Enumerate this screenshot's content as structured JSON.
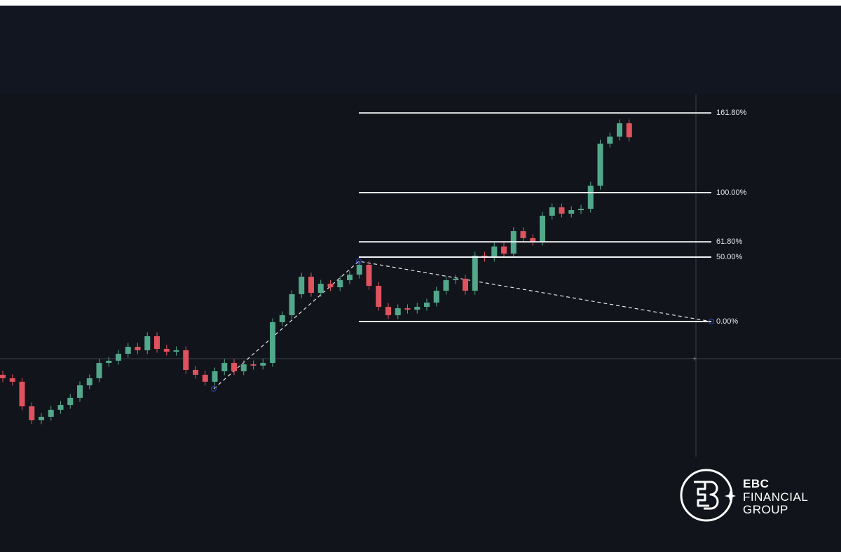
{
  "chart_data": {
    "type": "candlestick",
    "open": [
      -41.3,
      -44.0,
      -46.7,
      -65.8,
      -76.6,
      -73.9,
      -68.5,
      -64.7,
      -59.2,
      -49.5,
      -44.0,
      -32.1,
      -30.4,
      -25.0,
      -19.6,
      -22.3,
      -11.4,
      -21.2,
      -23.4,
      -22.3,
      -37.5,
      -41.3,
      -46.7,
      -38.6,
      -32.1,
      -38.6,
      -33.2,
      -34.2,
      -32.1,
      -0.5,
      4.9,
      21.2,
      34.8,
      22.3,
      29.3,
      26.6,
      32.1,
      36.4,
      44.0,
      27.7,
      11.4,
      4.9,
      10.3,
      9.2,
      11.4,
      14.7,
      23.9,
      32.1,
      33.2,
      23.9,
      51.1,
      49.5,
      58.2,
      52.7,
      70.1,
      64.7,
      62.0,
      82.1,
      88.6,
      83.7,
      86.4,
      87.5,
      105.4,
      138.0,
      143.5,
      153.8
    ],
    "high": [
      -38.3,
      -41.0,
      -43.7,
      -62.8,
      -70.9,
      -65.5,
      -61.7,
      -56.2,
      -46.5,
      -41.0,
      -29.1,
      -27.4,
      -22.0,
      -16.6,
      -16.6,
      -8.4,
      -8.4,
      -18.2,
      -19.3,
      -19.3,
      -34.5,
      -38.3,
      -35.6,
      -29.1,
      -29.1,
      -30.2,
      -30.2,
      -29.1,
      2.5,
      7.9,
      24.2,
      37.8,
      37.8,
      32.3,
      32.3,
      35.1,
      39.4,
      47.0,
      47.0,
      30.7,
      14.4,
      13.3,
      13.3,
      14.4,
      17.7,
      26.9,
      35.1,
      36.2,
      36.2,
      54.1,
      54.1,
      61.2,
      61.2,
      73.1,
      73.1,
      67.7,
      85.1,
      91.6,
      91.6,
      89.4,
      90.5,
      108.4,
      141.0,
      146.5,
      156.8,
      156.8
    ],
    "low": [
      -47.0,
      -49.7,
      -68.8,
      -79.6,
      -79.6,
      -76.9,
      -71.5,
      -67.7,
      -62.2,
      -52.5,
      -47.0,
      -35.1,
      -33.4,
      -28.0,
      -25.3,
      -25.3,
      -24.2,
      -26.4,
      -26.4,
      -40.5,
      -44.3,
      -49.7,
      -49.7,
      -41.6,
      -41.6,
      -41.6,
      -37.2,
      -37.2,
      -35.1,
      -3.5,
      1.9,
      18.2,
      19.3,
      19.3,
      23.6,
      23.6,
      29.1,
      33.4,
      24.7,
      8.4,
      1.9,
      1.9,
      6.2,
      6.2,
      8.4,
      11.7,
      20.9,
      29.1,
      20.9,
      20.9,
      46.5,
      46.5,
      49.7,
      49.7,
      61.7,
      59.0,
      59.0,
      79.1,
      80.7,
      80.7,
      83.4,
      84.5,
      102.4,
      135.0,
      140.5,
      139.9
    ],
    "close": [
      -44.0,
      -46.7,
      -65.8,
      -76.6,
      -73.9,
      -68.5,
      -64.7,
      -59.2,
      -49.5,
      -44.0,
      -32.1,
      -30.4,
      -25.0,
      -19.6,
      -22.3,
      -11.4,
      -21.2,
      -23.4,
      -22.3,
      -37.5,
      -41.3,
      -46.7,
      -38.6,
      -32.1,
      -38.6,
      -33.2,
      -34.2,
      -32.1,
      -0.5,
      4.9,
      21.2,
      34.8,
      22.3,
      29.3,
      26.6,
      32.1,
      36.4,
      44.0,
      27.7,
      11.4,
      4.9,
      10.3,
      9.2,
      11.4,
      14.7,
      23.9,
      32.1,
      33.2,
      23.9,
      51.1,
      49.5,
      58.2,
      52.7,
      70.1,
      64.7,
      62.0,
      82.1,
      88.6,
      83.7,
      86.4,
      87.5,
      105.4,
      138.0,
      143.5,
      153.8,
      142.9
    ],
    "up_color": "#52a88a",
    "down_color": "#e0525e",
    "yticks": [
      {
        "value": 161.8,
        "label": "161.80%"
      },
      {
        "value": 100,
        "label": "100.00%"
      },
      {
        "value": 61.8,
        "label": "61.80%"
      },
      {
        "value": 50,
        "label": "50.00%"
      },
      {
        "value": 0,
        "label": "0.00%"
      }
    ]
  },
  "logo": {
    "line1": "EBC",
    "line2": "FINANCIAL",
    "line3": "GROUP"
  }
}
